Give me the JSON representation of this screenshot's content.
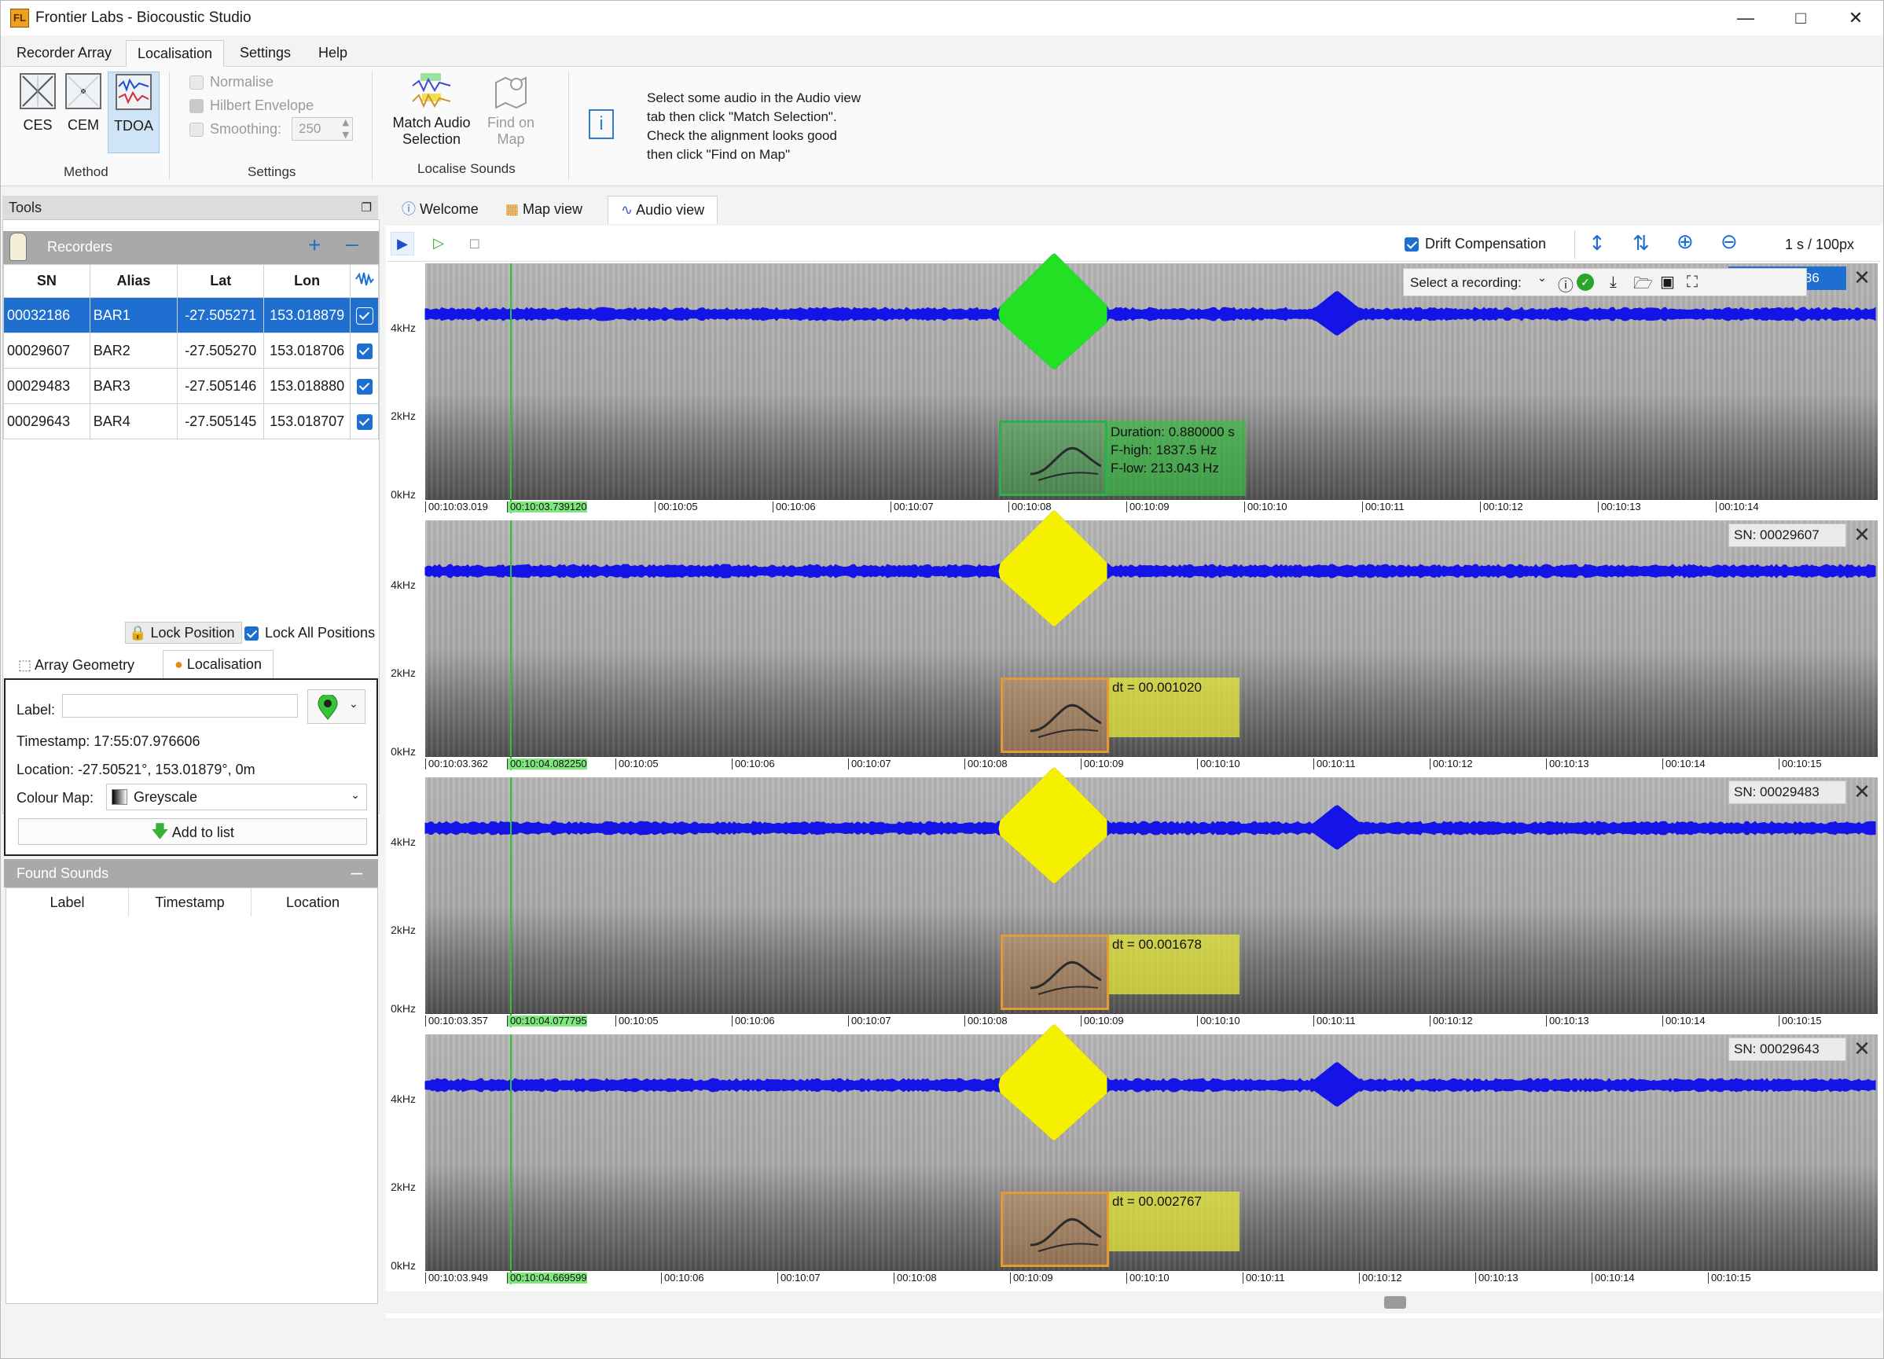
{
  "window": {
    "title": "Frontier Labs - Biocoustic Studio",
    "logo": "FL",
    "minimize_icon": "minimize-icon",
    "maximize_icon": "maximize-icon",
    "close_icon": "close-icon"
  },
  "menu": {
    "tabs": [
      "Recorder Array",
      "Localisation",
      "Settings",
      "Help"
    ],
    "active": "Localisation"
  },
  "ribbon": {
    "method": {
      "group_label": "Method",
      "buttons": [
        "CES",
        "CEM",
        "TDOA"
      ],
      "active": "TDOA"
    },
    "settings": {
      "group_label": "Settings",
      "normalise": "Normalise",
      "hilbert": "Hilbert Envelope",
      "smoothing": "Smoothing:",
      "smoothing_value": "250"
    },
    "localise": {
      "group_label": "Localise Sounds",
      "match_line1": "Match Audio",
      "match_line2": "Selection",
      "find_line1": "Find on",
      "find_line2": "Map"
    },
    "info_lines": [
      "Select some audio in the Audio view",
      "tab then click \"Match Selection\".",
      "Check the alignment looks good",
      "then click \"Find on Map\""
    ]
  },
  "tools": {
    "title": "Tools",
    "recorders_title": "Recorders",
    "columns": [
      "SN",
      "Alias",
      "Lat",
      "Lon"
    ],
    "rows": [
      {
        "sn": "00032186",
        "alias": "BAR1",
        "lat": "-27.505271",
        "lon": "153.018879",
        "selected": true
      },
      {
        "sn": "00029607",
        "alias": "BAR2",
        "lat": "-27.505270",
        "lon": "153.018706",
        "selected": false
      },
      {
        "sn": "00029483",
        "alias": "BAR3",
        "lat": "-27.505146",
        "lon": "153.018880",
        "selected": false
      },
      {
        "sn": "00029643",
        "alias": "BAR4",
        "lat": "-27.505145",
        "lon": "153.018707",
        "selected": false
      }
    ],
    "lock_position": "Lock Position",
    "lock_all": "Lock All Positions",
    "tabs": [
      "Array Geometry",
      "Localisation"
    ],
    "label_caption": "Label:",
    "label_value": "",
    "timestamp": "Timestamp:  17:55:07.976606",
    "location": "Location:  -27.50521°, 153.01879°, 0m",
    "colour_map_caption": "Colour Map:",
    "colour_map_value": "Greyscale",
    "add_to_list": "Add to list",
    "found_sounds_title": "Found Sounds",
    "found_columns": [
      "Label",
      "Timestamp",
      "Location"
    ]
  },
  "viewer": {
    "tabs": [
      "Welcome",
      "Map view",
      "Audio view"
    ],
    "active_tab": "Audio view",
    "drift_compensation": "Drift Compensation",
    "scale": "1 s / 100px",
    "select_recording": "Select a recording:",
    "colors": {
      "wave": "#1414e6",
      "detected_green": "#22e022",
      "detected_yellow": "#f5f000",
      "overlay_magenta": "#e020e0"
    },
    "tracks": [
      {
        "sn": "SN: 00032186",
        "highlight": true,
        "freq": [
          "4kHz",
          "2kHz",
          "0kHz"
        ],
        "start": "00:10:03.019",
        "cursor": "00:10:03.739120",
        "ticks": [
          "00:10:05",
          "00:10:06",
          "00:10:07",
          "00:10:08",
          "00:10:09",
          "00:10:10",
          "00:10:11",
          "00:10:12",
          "00:10:13",
          "00:10:14"
        ],
        "sel": [
          "Duration: 0.880000 s",
          "F-high: 1837.5 Hz",
          "F-low: 213.043 Hz"
        ]
      },
      {
        "sn": "SN: 00029607",
        "highlight": false,
        "freq": [
          "4kHz",
          "2kHz",
          "0kHz"
        ],
        "start": "00:10:03.362",
        "cursor": "00:10:04.082250",
        "ticks": [
          "00:10:05",
          "00:10:06",
          "00:10:07",
          "00:10:08",
          "00:10:09",
          "00:10:10",
          "00:10:11",
          "00:10:12",
          "00:10:13",
          "00:10:14",
          "00:10:15"
        ],
        "dt": "dt = 00.001020"
      },
      {
        "sn": "SN: 00029483",
        "highlight": false,
        "freq": [
          "4kHz",
          "2kHz",
          "0kHz"
        ],
        "start": "00:10:03.357",
        "cursor": "00:10:04.077795",
        "ticks": [
          "00:10:05",
          "00:10:06",
          "00:10:07",
          "00:10:08",
          "00:10:09",
          "00:10:10",
          "00:10:11",
          "00:10:12",
          "00:10:13",
          "00:10:14",
          "00:10:15"
        ],
        "dt": "dt = 00.001678"
      },
      {
        "sn": "SN: 00029643",
        "highlight": false,
        "freq": [
          "4kHz",
          "2kHz",
          "0kHz"
        ],
        "start": "00:10:03.949",
        "cursor": "00:10:04.669599",
        "ticks": [
          "00:10:06",
          "00:10:07",
          "00:10:08",
          "00:10:09",
          "00:10:10",
          "00:10:11",
          "00:10:12",
          "00:10:13",
          "00:10:14",
          "00:10:15"
        ],
        "dt": "dt = 00.002767"
      }
    ]
  }
}
